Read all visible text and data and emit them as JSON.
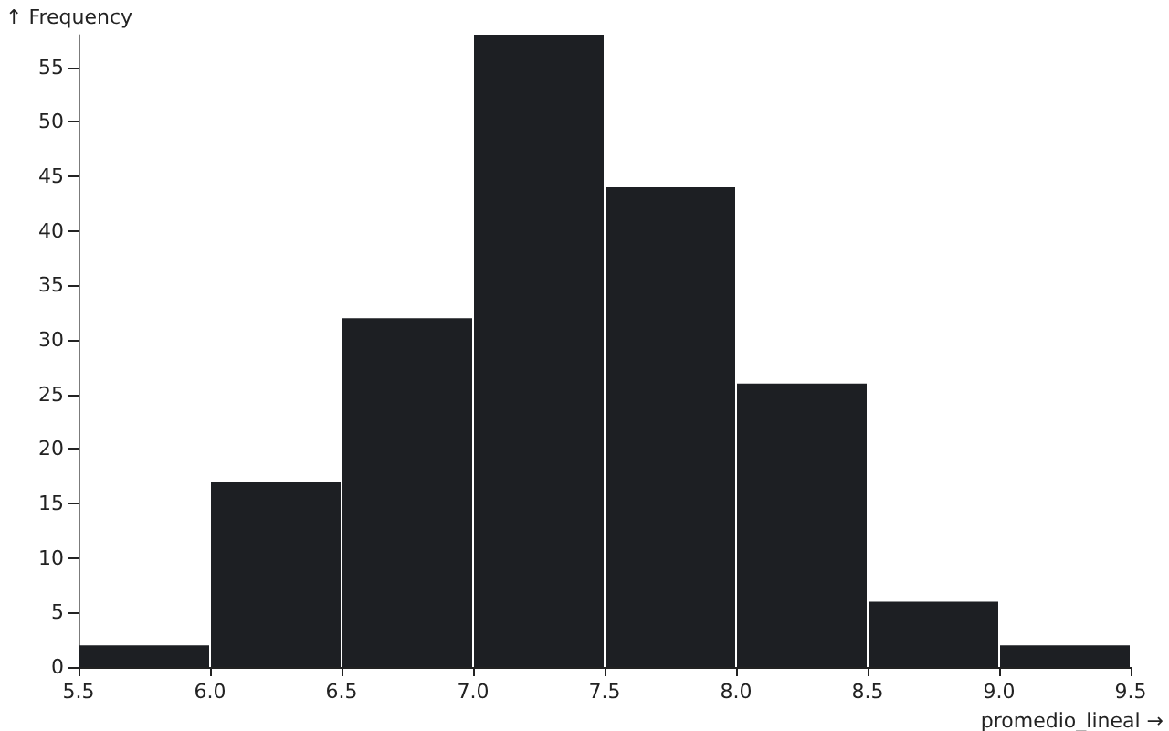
{
  "chart_data": {
    "type": "histogram",
    "xlabel": "promedio_lineal →",
    "ylabel": "↑ Frequency",
    "bins": [
      5.5,
      6.0,
      6.5,
      7.0,
      7.5,
      8.0,
      8.5,
      9.0,
      9.5
    ],
    "values": [
      2,
      17,
      32,
      58,
      44,
      26,
      6,
      2
    ],
    "color": "#1d1f23",
    "xlim": [
      5.5,
      9.5
    ],
    "xticks": [
      5.5,
      {
        "value": 6,
        "label": "6.0"
      },
      6.5,
      {
        "value": 7,
        "label": "7.0"
      },
      7.5,
      {
        "value": 8,
        "label": "8.0"
      },
      8.5,
      {
        "value": 9,
        "label": "9.0"
      },
      9.5
    ],
    "ylim": [
      0,
      58
    ],
    "yticks": [
      0,
      5,
      10,
      15,
      20,
      25,
      30,
      35,
      40,
      45,
      50,
      55
    ],
    "grid": false
  }
}
